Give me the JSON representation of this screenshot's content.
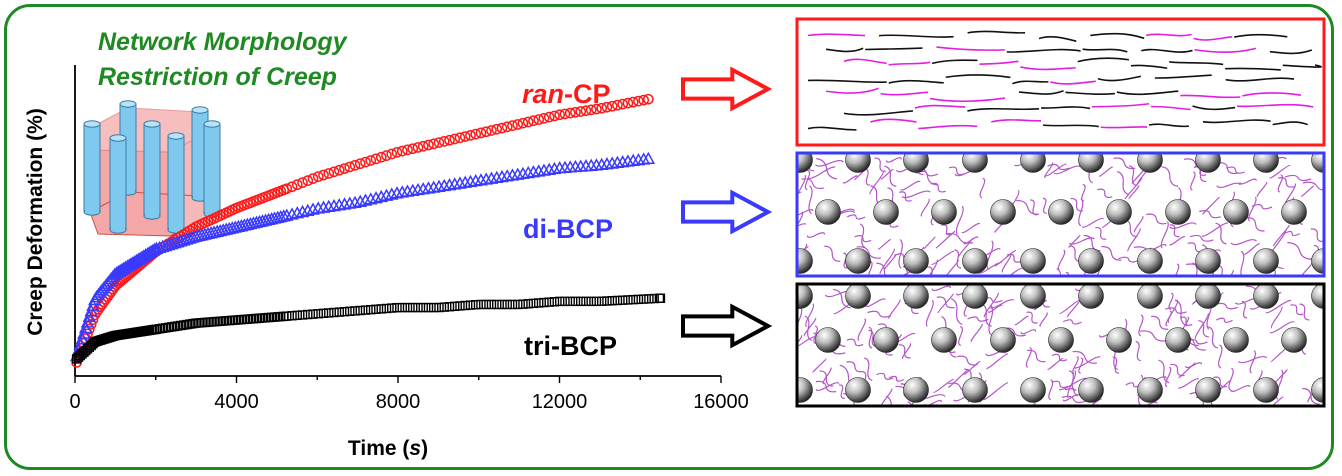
{
  "title_lines": [
    "Network Morphology",
    "Restriction of Creep"
  ],
  "colors": {
    "frame": "#1f8a22",
    "title": "#1f8a22",
    "ran_cp": "#ff1a1a",
    "di_bcp": "#3a3aff",
    "tri_bcp": "#000000",
    "chain_black": "#111111",
    "chain_magenta": "#e21ee2",
    "network_chain": "#b455c8",
    "cylinder": "#7fc8ee",
    "hexagon": "#f08a8a"
  },
  "icons": [
    "hexagonal-cylinder-icon",
    "arrow-icon",
    "random-copolymer-chains-icon",
    "diblock-network-icon",
    "triblock-network-icon"
  ],
  "labels": {
    "ran_prefix": "ran",
    "ran_suffix": "-CP",
    "di": "di-BCP",
    "tri": "tri-BCP"
  },
  "chart_data": {
    "type": "scatter",
    "title": "",
    "xlabel_main": "Time (",
    "xlabel_unit": "s",
    "xlabel_end": ")",
    "ylabel": "Creep Deformation (%)",
    "xlim": [
      0,
      16000
    ],
    "ylim": [
      0,
      100
    ],
    "xticks": [
      "0",
      "4000",
      "8000",
      "12000",
      "16000"
    ],
    "yticks": [],
    "grid": false,
    "legend": "none",
    "series": [
      {
        "name": "ran-CP",
        "marker": "circle",
        "color": "#ff1a1a",
        "x": [
          0,
          500,
          1000,
          2000,
          3000,
          4000,
          5000,
          6000,
          7000,
          8000,
          9000,
          10000,
          11000,
          12000,
          13000,
          14200
        ],
        "y": [
          3,
          20,
          29,
          40,
          48,
          54,
          59,
          64,
          68,
          72,
          75,
          78,
          81,
          84,
          86,
          89
        ]
      },
      {
        "name": "di-BCP",
        "marker": "triangle",
        "color": "#3a3aff",
        "x": [
          0,
          500,
          1000,
          2000,
          3000,
          4000,
          5000,
          6000,
          7000,
          8000,
          9000,
          10000,
          11000,
          12000,
          13000,
          14200
        ],
        "y": [
          5,
          25,
          33,
          41,
          45,
          48,
          51,
          54,
          56,
          59,
          61,
          63,
          65,
          67,
          68,
          70
        ]
      },
      {
        "name": "tri-BCP",
        "marker": "square",
        "color": "#000000",
        "x": [
          0,
          500,
          1000,
          2000,
          3000,
          4000,
          5000,
          6000,
          7000,
          8000,
          9000,
          10000,
          11000,
          12000,
          13000,
          14500
        ],
        "y": [
          5,
          11,
          13,
          15,
          17,
          18,
          19,
          20,
          21,
          22,
          22,
          23,
          23,
          24,
          24,
          25
        ]
      }
    ]
  }
}
